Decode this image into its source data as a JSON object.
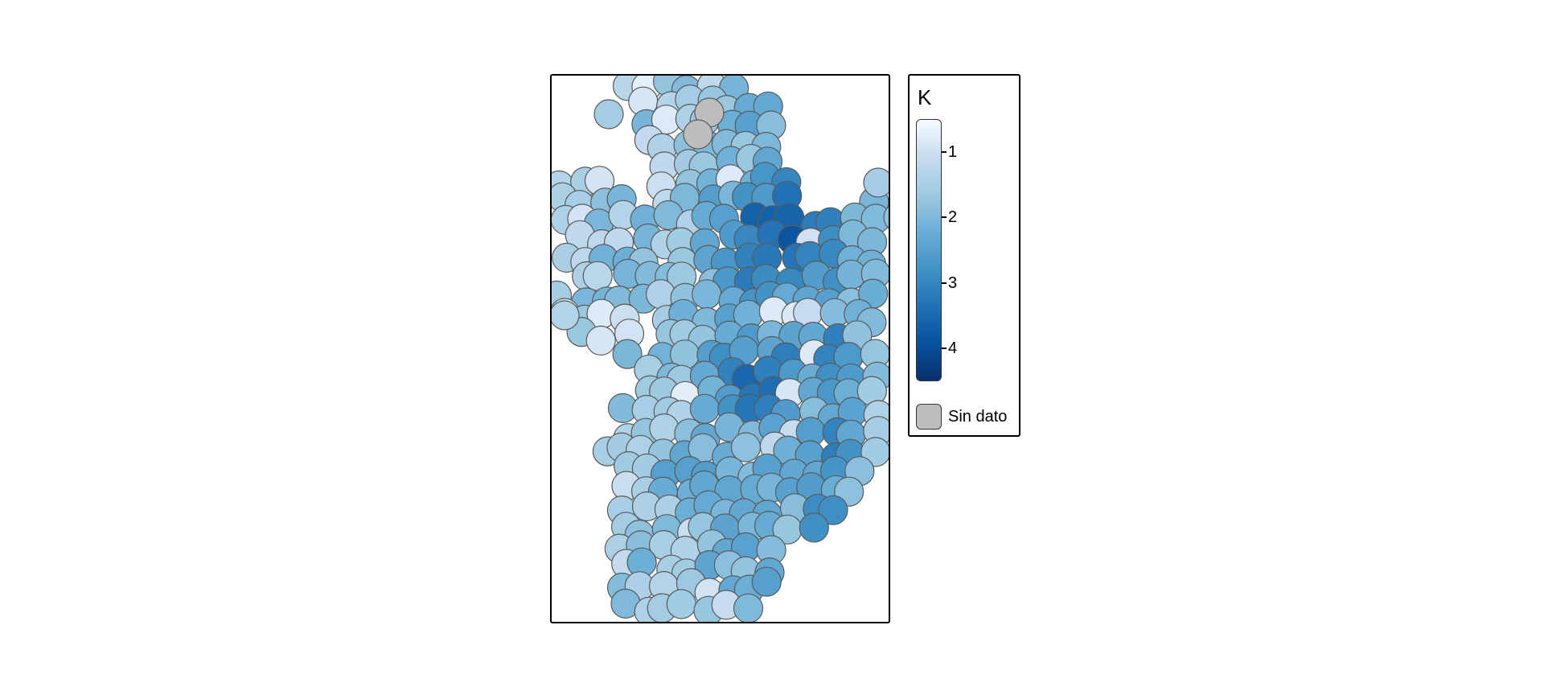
{
  "legend": {
    "title": "K",
    "ticks": [
      {
        "label": "1",
        "value": 1
      },
      {
        "label": "2",
        "value": 2
      },
      {
        "label": "3",
        "value": 3
      },
      {
        "label": "4",
        "value": 4
      }
    ],
    "range": [
      0.5,
      4.5
    ],
    "no_data_label": "Sin dato",
    "colors": [
      "#f7fbff",
      "#c6dbef",
      "#9ecae1",
      "#6baed6",
      "#4292c6",
      "#2171b5",
      "#08519c",
      "#08306b"
    ],
    "no_data_color": "#bdbdbd"
  }
}
